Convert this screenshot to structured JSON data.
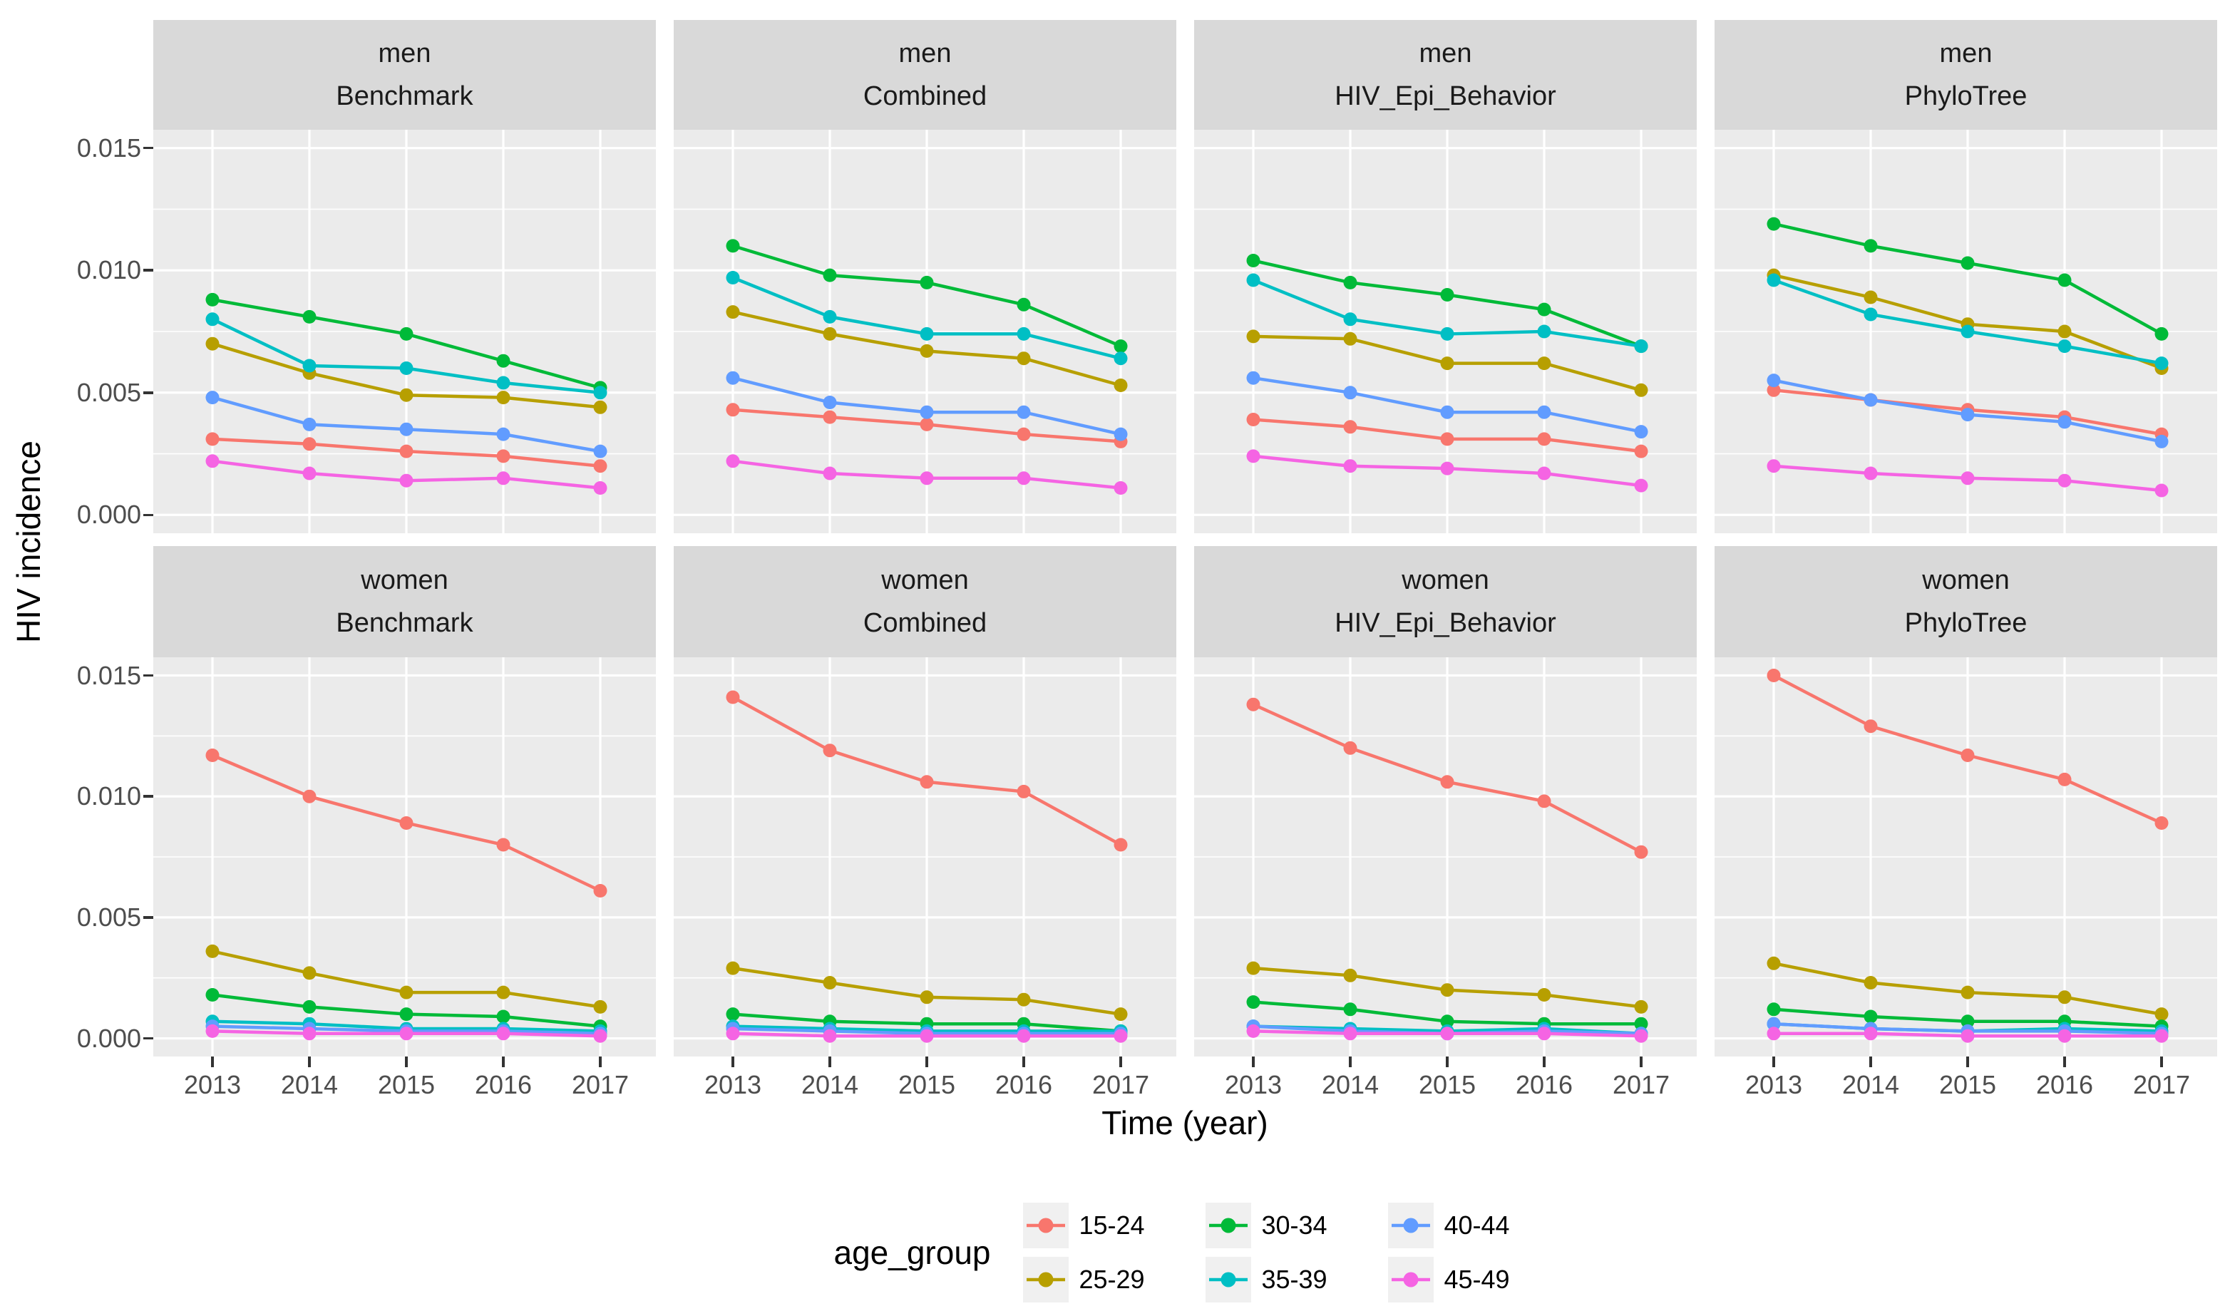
{
  "chart_data": {
    "type": "line",
    "x": [
      2013,
      2014,
      2015,
      2016,
      2017
    ],
    "xlabel": "Time (year)",
    "ylabel": "HIV incidence",
    "ytick_labels": [
      "0.000",
      "0.005",
      "0.010",
      "0.015"
    ],
    "ytick_values": [
      0,
      0.005,
      0.01,
      0.015
    ],
    "ytick_minor_values": [
      0.0025,
      0.0075,
      0.0125
    ],
    "ylim": [
      -0.00075,
      0.01575
    ],
    "grid": "white-on-gray",
    "legend_title": "age_group",
    "legend_position": "bottom",
    "facet_rows": [
      "men",
      "women"
    ],
    "facet_cols": [
      "Benchmark",
      "Combined",
      "HIV_Epi_Behavior",
      "PhyloTree"
    ],
    "age_groups": [
      {
        "name": "15-24",
        "color": "#F8766D"
      },
      {
        "name": "25-29",
        "color": "#B79F00"
      },
      {
        "name": "30-34",
        "color": "#00BA38"
      },
      {
        "name": "35-39",
        "color": "#00BFC4"
      },
      {
        "name": "40-44",
        "color": "#619CFF"
      },
      {
        "name": "45-49",
        "color": "#F564E3"
      }
    ],
    "panels": [
      {
        "sex": "men",
        "scenario": "Benchmark",
        "series": [
          {
            "name": "15-24",
            "values": [
              0.0031,
              0.0029,
              0.0026,
              0.0024,
              0.002
            ]
          },
          {
            "name": "25-29",
            "values": [
              0.007,
              0.0058,
              0.0049,
              0.0048,
              0.0044
            ]
          },
          {
            "name": "30-34",
            "values": [
              0.0088,
              0.0081,
              0.0074,
              0.0063,
              0.0052
            ]
          },
          {
            "name": "35-39",
            "values": [
              0.008,
              0.0061,
              0.006,
              0.0054,
              0.005
            ]
          },
          {
            "name": "40-44",
            "values": [
              0.0048,
              0.0037,
              0.0035,
              0.0033,
              0.0026
            ]
          },
          {
            "name": "45-49",
            "values": [
              0.0022,
              0.0017,
              0.0014,
              0.0015,
              0.0011
            ]
          }
        ]
      },
      {
        "sex": "men",
        "scenario": "Combined",
        "series": [
          {
            "name": "15-24",
            "values": [
              0.0043,
              0.004,
              0.0037,
              0.0033,
              0.003
            ]
          },
          {
            "name": "25-29",
            "values": [
              0.0083,
              0.0074,
              0.0067,
              0.0064,
              0.0053
            ]
          },
          {
            "name": "30-34",
            "values": [
              0.011,
              0.0098,
              0.0095,
              0.0086,
              0.0069
            ]
          },
          {
            "name": "35-39",
            "values": [
              0.0097,
              0.0081,
              0.0074,
              0.0074,
              0.0064
            ]
          },
          {
            "name": "40-44",
            "values": [
              0.0056,
              0.0046,
              0.0042,
              0.0042,
              0.0033
            ]
          },
          {
            "name": "45-49",
            "values": [
              0.0022,
              0.0017,
              0.0015,
              0.0015,
              0.0011
            ]
          }
        ]
      },
      {
        "sex": "men",
        "scenario": "HIV_Epi_Behavior",
        "series": [
          {
            "name": "15-24",
            "values": [
              0.0039,
              0.0036,
              0.0031,
              0.0031,
              0.0026
            ]
          },
          {
            "name": "25-29",
            "values": [
              0.0073,
              0.0072,
              0.0062,
              0.0062,
              0.0051
            ]
          },
          {
            "name": "30-34",
            "values": [
              0.0104,
              0.0095,
              0.009,
              0.0084,
              0.0069
            ]
          },
          {
            "name": "35-39",
            "values": [
              0.0096,
              0.008,
              0.0074,
              0.0075,
              0.0069
            ]
          },
          {
            "name": "40-44",
            "values": [
              0.0056,
              0.005,
              0.0042,
              0.0042,
              0.0034
            ]
          },
          {
            "name": "45-49",
            "values": [
              0.0024,
              0.002,
              0.0019,
              0.0017,
              0.0012
            ]
          }
        ]
      },
      {
        "sex": "men",
        "scenario": "PhyloTree",
        "series": [
          {
            "name": "15-24",
            "values": [
              0.0051,
              0.0047,
              0.0043,
              0.004,
              0.0033
            ]
          },
          {
            "name": "25-29",
            "values": [
              0.0098,
              0.0089,
              0.0078,
              0.0075,
              0.006
            ]
          },
          {
            "name": "30-34",
            "values": [
              0.0119,
              0.011,
              0.0103,
              0.0096,
              0.0074
            ]
          },
          {
            "name": "35-39",
            "values": [
              0.0096,
              0.0082,
              0.0075,
              0.0069,
              0.0062
            ]
          },
          {
            "name": "40-44",
            "values": [
              0.0055,
              0.0047,
              0.0041,
              0.0038,
              0.003
            ]
          },
          {
            "name": "45-49",
            "values": [
              0.002,
              0.0017,
              0.0015,
              0.0014,
              0.001
            ]
          }
        ]
      },
      {
        "sex": "women",
        "scenario": "Benchmark",
        "series": [
          {
            "name": "15-24",
            "values": [
              0.0117,
              0.01,
              0.0089,
              0.008,
              0.0061
            ]
          },
          {
            "name": "25-29",
            "values": [
              0.0036,
              0.0027,
              0.0019,
              0.0019,
              0.0013
            ]
          },
          {
            "name": "30-34",
            "values": [
              0.0018,
              0.0013,
              0.001,
              0.0009,
              0.0005
            ]
          },
          {
            "name": "35-39",
            "values": [
              0.0007,
              0.0006,
              0.0004,
              0.0004,
              0.0003
            ]
          },
          {
            "name": "40-44",
            "values": [
              0.0005,
              0.0004,
              0.0003,
              0.0003,
              0.0002
            ]
          },
          {
            "name": "45-49",
            "values": [
              0.0003,
              0.0002,
              0.0002,
              0.0002,
              0.0001
            ]
          }
        ]
      },
      {
        "sex": "women",
        "scenario": "Combined",
        "series": [
          {
            "name": "15-24",
            "values": [
              0.0141,
              0.0119,
              0.0106,
              0.0102,
              0.008
            ]
          },
          {
            "name": "25-29",
            "values": [
              0.0029,
              0.0023,
              0.0017,
              0.0016,
              0.001
            ]
          },
          {
            "name": "30-34",
            "values": [
              0.001,
              0.0007,
              0.0006,
              0.0006,
              0.0003
            ]
          },
          {
            "name": "35-39",
            "values": [
              0.0005,
              0.0004,
              0.0003,
              0.0003,
              0.0003
            ]
          },
          {
            "name": "40-44",
            "values": [
              0.0004,
              0.0003,
              0.0002,
              0.0002,
              0.0002
            ]
          },
          {
            "name": "45-49",
            "values": [
              0.0002,
              0.0001,
              0.0001,
              0.0001,
              0.0001
            ]
          }
        ]
      },
      {
        "sex": "women",
        "scenario": "HIV_Epi_Behavior",
        "series": [
          {
            "name": "15-24",
            "values": [
              0.0138,
              0.012,
              0.0106,
              0.0098,
              0.0077
            ]
          },
          {
            "name": "25-29",
            "values": [
              0.0029,
              0.0026,
              0.002,
              0.0018,
              0.0013
            ]
          },
          {
            "name": "30-34",
            "values": [
              0.0015,
              0.0012,
              0.0007,
              0.0006,
              0.0006
            ]
          },
          {
            "name": "35-39",
            "values": [
              0.0005,
              0.0004,
              0.0003,
              0.0004,
              0.0002
            ]
          },
          {
            "name": "40-44",
            "values": [
              0.0005,
              0.0003,
              0.0002,
              0.0003,
              0.0002
            ]
          },
          {
            "name": "45-49",
            "values": [
              0.0003,
              0.0002,
              0.0002,
              0.0002,
              0.0001
            ]
          }
        ]
      },
      {
        "sex": "women",
        "scenario": "PhyloTree",
        "series": [
          {
            "name": "15-24",
            "values": [
              0.015,
              0.0129,
              0.0117,
              0.0107,
              0.0089
            ]
          },
          {
            "name": "25-29",
            "values": [
              0.0031,
              0.0023,
              0.0019,
              0.0017,
              0.001
            ]
          },
          {
            "name": "30-34",
            "values": [
              0.0012,
              0.0009,
              0.0007,
              0.0007,
              0.0005
            ]
          },
          {
            "name": "35-39",
            "values": [
              0.0006,
              0.0004,
              0.0003,
              0.0004,
              0.0003
            ]
          },
          {
            "name": "40-44",
            "values": [
              0.0006,
              0.0004,
              0.0003,
              0.0003,
              0.0002
            ]
          },
          {
            "name": "45-49",
            "values": [
              0.0002,
              0.0002,
              0.0001,
              0.0001,
              0.0001
            ]
          }
        ]
      }
    ],
    "theme_colors": {
      "panel_background": "#EBEBEB",
      "strip_background": "#D9D9D9",
      "grid_line": "#FFFFFF",
      "tick_text": "#4D4D4D",
      "tick_mark": "#333333",
      "legend_key_background": "#F0F0F0"
    }
  }
}
